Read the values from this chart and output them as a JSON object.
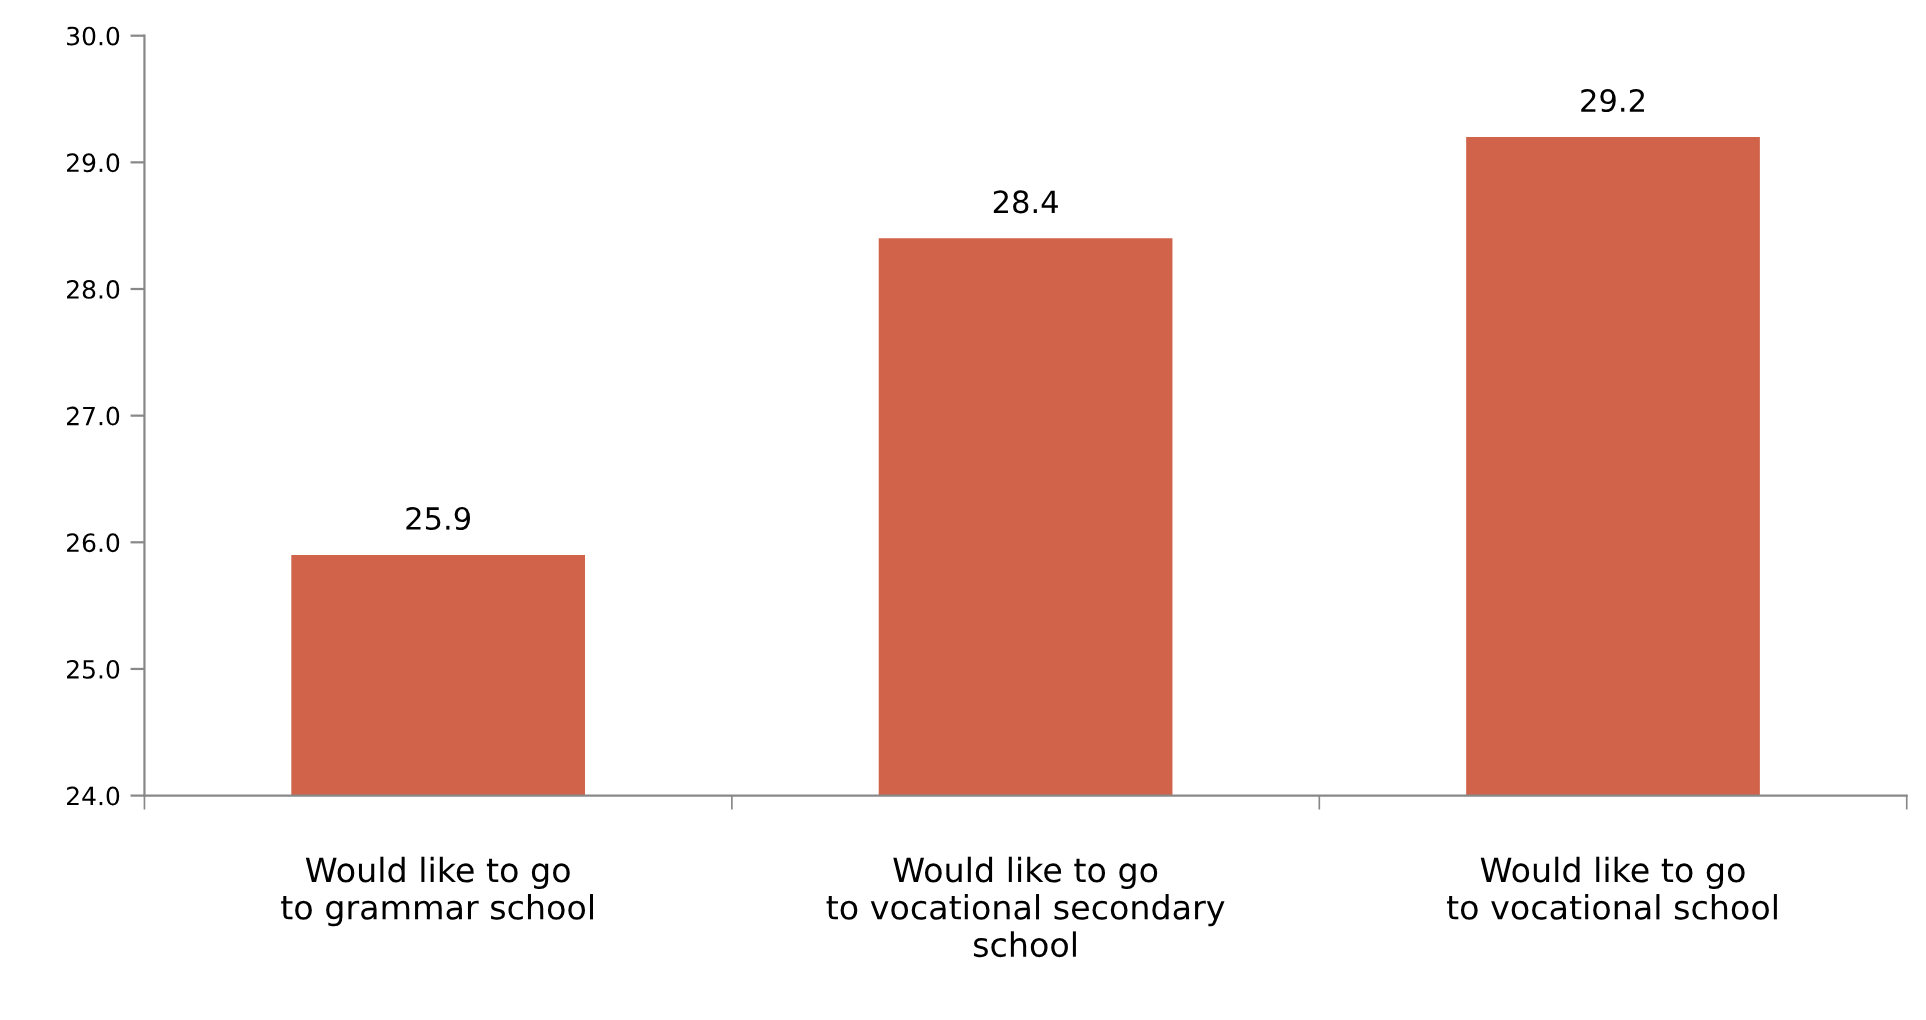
{
  "chart_data": {
    "type": "bar",
    "categories": [
      "Would like to go\nto grammar school",
      "Would like to go\nto vocational secondary\nschool",
      "Would like to go\nto vocational school"
    ],
    "values": [
      25.9,
      28.4,
      29.2
    ],
    "color": "#d0634a",
    "ylim": [
      24,
      30
    ],
    "yticks": [
      {
        "value": 24,
        "label": "24.0"
      },
      {
        "value": 25,
        "label": "25.0"
      },
      {
        "value": 26,
        "label": "26.0"
      },
      {
        "value": 27,
        "label": "27.0"
      },
      {
        "value": 28,
        "label": "28.0"
      },
      {
        "value": 29,
        "label": "29.0"
      },
      {
        "value": 30,
        "label": "30.0"
      }
    ],
    "data_labels": true,
    "grid": false,
    "legend": false
  }
}
